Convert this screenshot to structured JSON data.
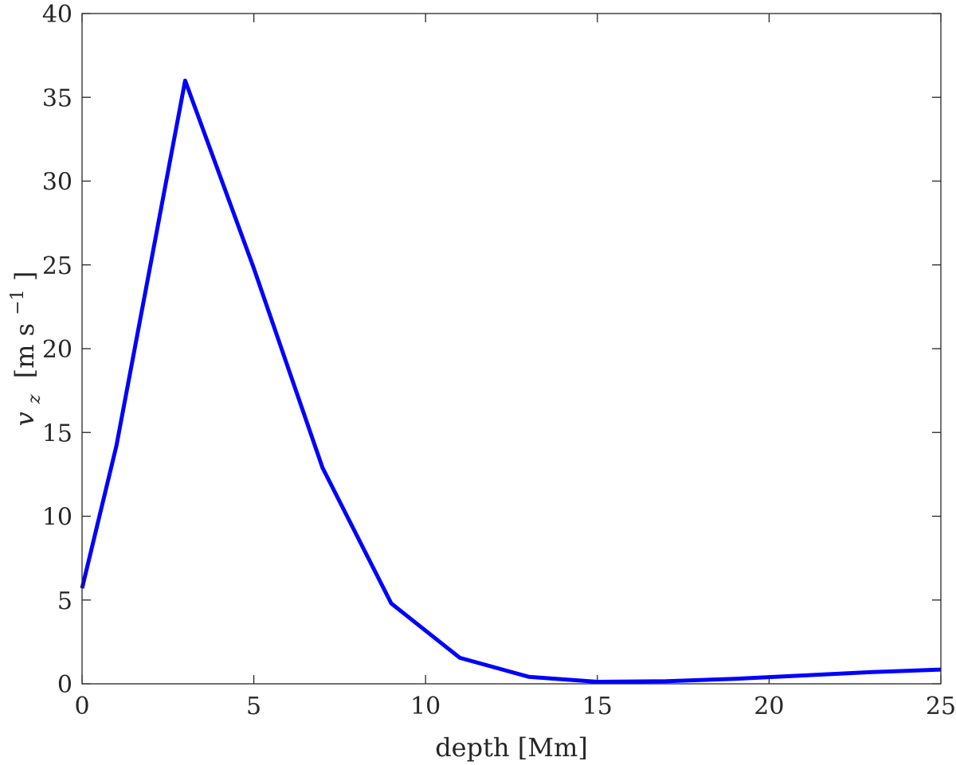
{
  "chart_data": {
    "type": "line",
    "xlabel": "depth [Mm]",
    "ylabel": {
      "var": "v",
      "sub": "z",
      "unit_prefix": "[m s",
      "unit_exp": "−1",
      "unit_suffix": "]"
    },
    "xlim": [
      0,
      25
    ],
    "ylim": [
      0,
      40
    ],
    "xticks": [
      0,
      5,
      10,
      15,
      20,
      25
    ],
    "yticks": [
      0,
      5,
      10,
      15,
      20,
      25,
      30,
      35,
      40
    ],
    "grid": false,
    "series": [
      {
        "color": "#0000ff",
        "x": [
          0,
          1,
          3,
          5,
          7,
          9,
          11,
          13,
          15,
          17,
          19,
          21,
          23,
          25
        ],
        "y": [
          5.7,
          14.2,
          36.0,
          24.8,
          12.9,
          4.8,
          1.55,
          0.42,
          0.12,
          0.15,
          0.3,
          0.5,
          0.7,
          0.85
        ]
      }
    ]
  }
}
